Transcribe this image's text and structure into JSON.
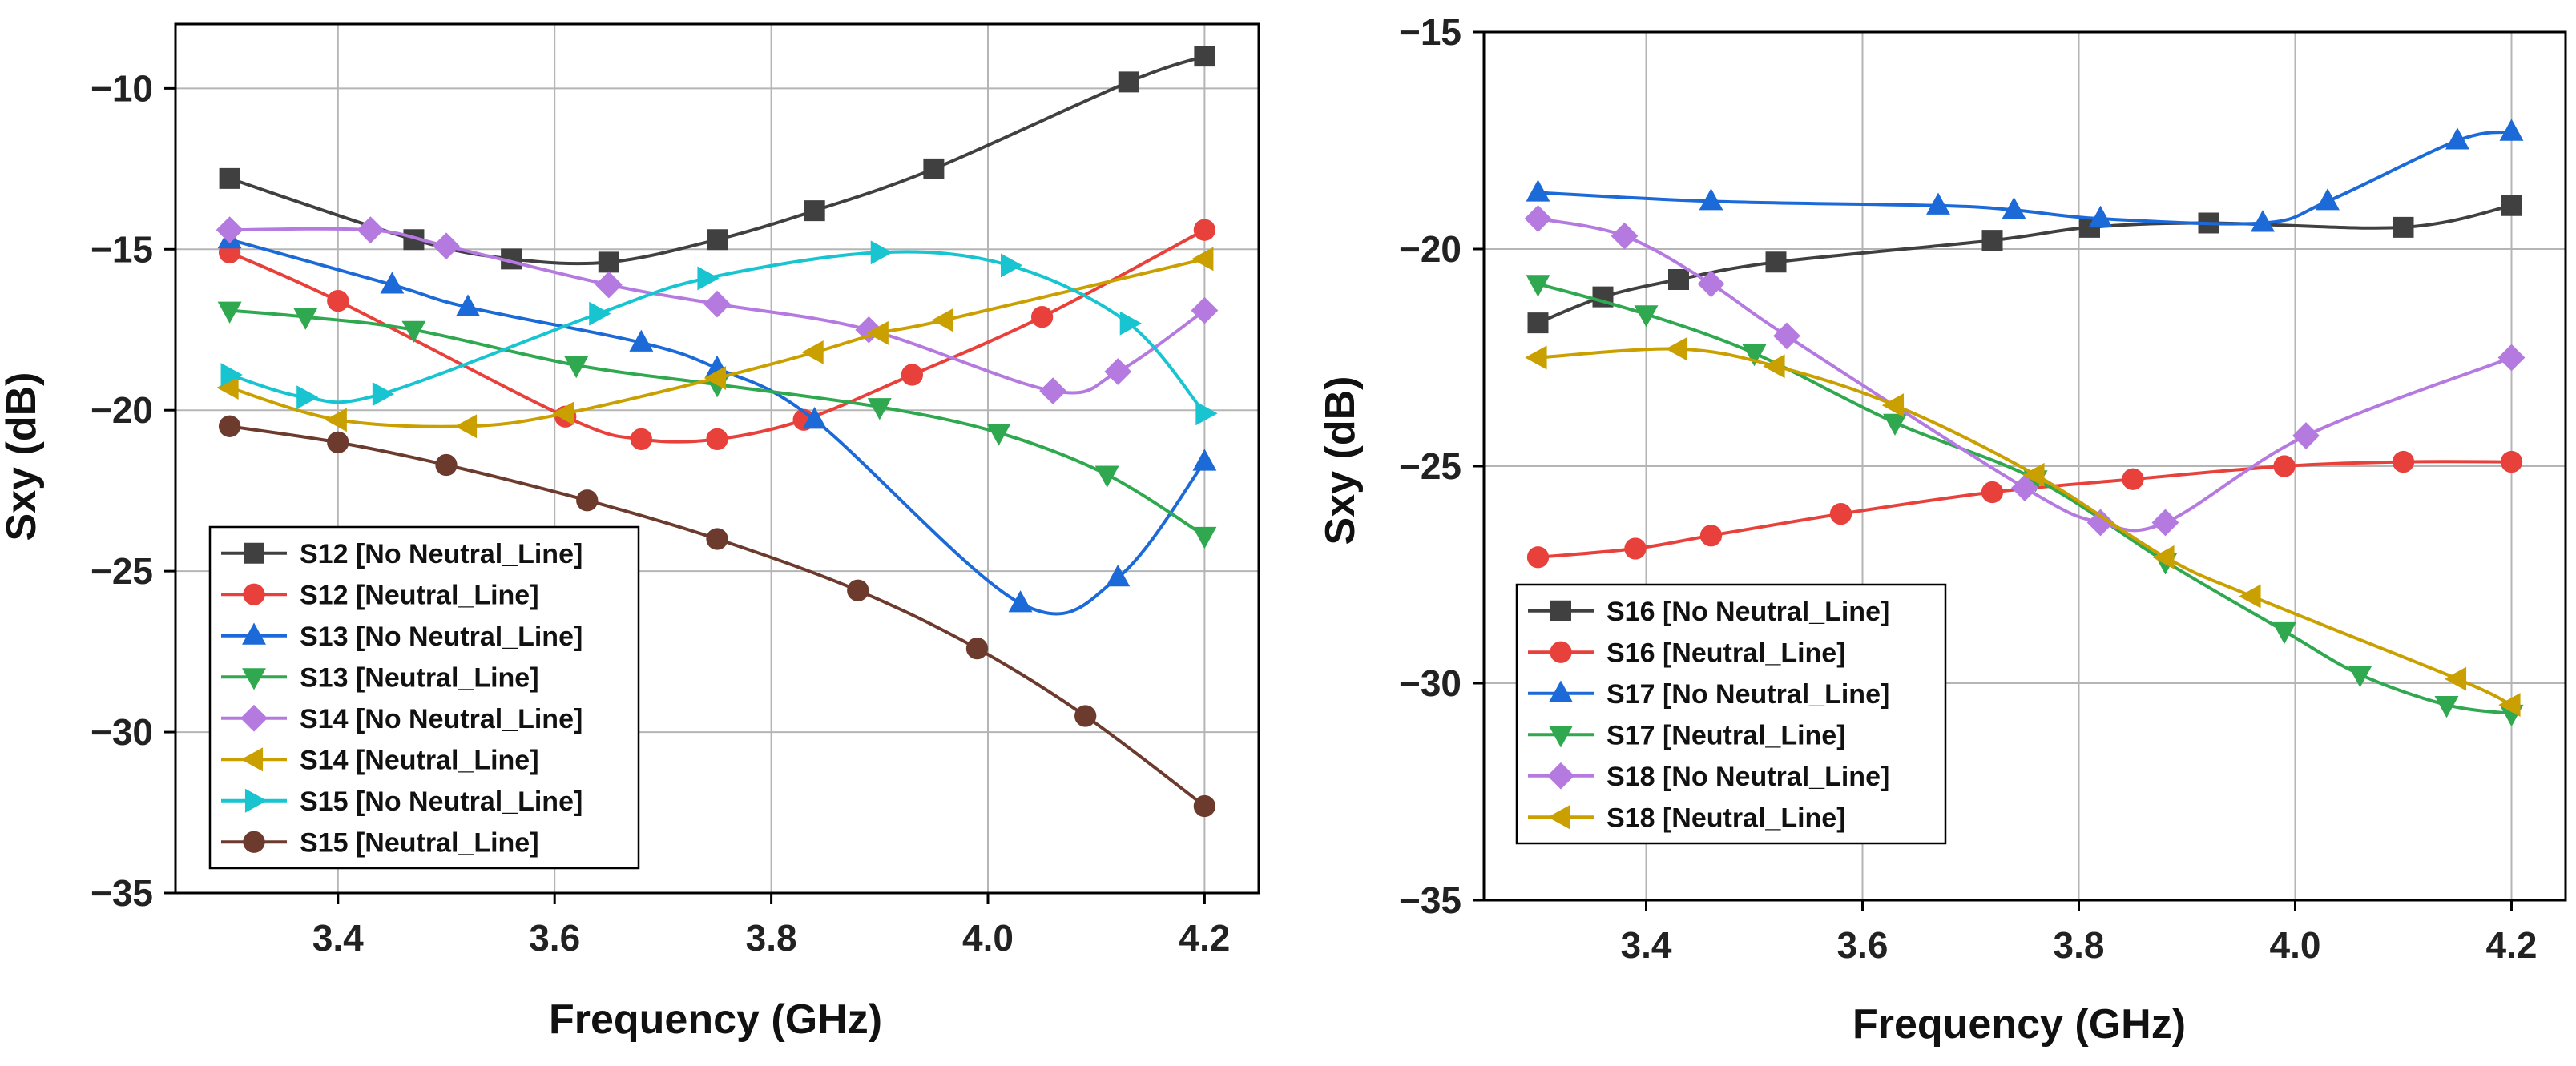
{
  "chart_data": [
    {
      "type": "line",
      "xlabel": "Frequency (GHz)",
      "ylabel": "Sxy (dB)",
      "xlim": [
        3.25,
        4.25
      ],
      "ylim": [
        -35,
        -8
      ],
      "xticks": [
        3.4,
        3.6,
        3.8,
        4.0,
        4.2
      ],
      "yticks": [
        -10,
        -15,
        -20,
        -25,
        -30,
        -35
      ],
      "xtick_labels": [
        "3.4",
        "3.6",
        "3.8",
        "4.0",
        "4.2"
      ],
      "ytick_labels": [
        "−10",
        "−15",
        "−20",
        "−25",
        "−30",
        "−35"
      ],
      "grid": true,
      "legend_position": "bottom-left",
      "series": [
        {
          "name": "S12 [No Neutral_Line]",
          "color": "#404040",
          "marker": "square",
          "x": [
            3.3,
            3.47,
            3.56,
            3.65,
            3.75,
            3.84,
            3.95,
            4.13,
            4.2
          ],
          "y": [
            -12.8,
            -14.7,
            -15.3,
            -15.4,
            -14.7,
            -13.8,
            -12.5,
            -9.8,
            -9.0
          ]
        },
        {
          "name": "S12 [Neutral_Line]",
          "color": "#e8413c",
          "marker": "circle",
          "x": [
            3.3,
            3.4,
            3.61,
            3.68,
            3.75,
            3.83,
            3.93,
            4.05,
            4.2
          ],
          "y": [
            -15.1,
            -16.6,
            -20.2,
            -20.9,
            -20.9,
            -20.3,
            -18.9,
            -17.1,
            -14.4
          ]
        },
        {
          "name": "S13 [No Neutral_Line]",
          "color": "#1c6ad8",
          "marker": "triangle-up",
          "x": [
            3.3,
            3.45,
            3.52,
            3.68,
            3.75,
            3.84,
            4.03,
            4.12,
            4.2
          ],
          "y": [
            -14.7,
            -16.1,
            -16.8,
            -17.9,
            -18.7,
            -20.3,
            -26.0,
            -25.2,
            -21.6
          ]
        },
        {
          "name": "S13 [Neutral_Line]",
          "color": "#2fa84f",
          "marker": "triangle-down",
          "x": [
            3.3,
            3.37,
            3.47,
            3.62,
            3.75,
            3.9,
            4.01,
            4.11,
            4.2
          ],
          "y": [
            -16.9,
            -17.1,
            -17.5,
            -18.6,
            -19.2,
            -19.9,
            -20.7,
            -22.0,
            -23.9
          ]
        },
        {
          "name": "S14 [No Neutral_Line]",
          "color": "#b57ae0",
          "marker": "diamond",
          "x": [
            3.3,
            3.43,
            3.5,
            3.65,
            3.75,
            3.89,
            4.06,
            4.12,
            4.2
          ],
          "y": [
            -14.4,
            -14.4,
            -14.9,
            -16.1,
            -16.7,
            -17.5,
            -19.4,
            -18.8,
            -16.9
          ]
        },
        {
          "name": "S14 [Neutral_Line]",
          "color": "#c9a000",
          "marker": "triangle-left",
          "x": [
            3.3,
            3.4,
            3.52,
            3.61,
            3.75,
            3.84,
            3.9,
            3.96,
            4.2
          ],
          "y": [
            -19.3,
            -20.3,
            -20.5,
            -20.1,
            -19.0,
            -18.2,
            -17.6,
            -17.2,
            -15.3
          ]
        },
        {
          "name": "S15 [No Neutral_Line]",
          "color": "#17c4d0",
          "marker": "triangle-right",
          "x": [
            3.3,
            3.37,
            3.44,
            3.64,
            3.74,
            3.9,
            4.02,
            4.13,
            4.2
          ],
          "y": [
            -18.9,
            -19.6,
            -19.5,
            -17.0,
            -15.9,
            -15.1,
            -15.5,
            -17.3,
            -20.1
          ]
        },
        {
          "name": "S15 [Neutral_Line]",
          "color": "#6d3b2e",
          "marker": "circle",
          "x": [
            3.3,
            3.4,
            3.5,
            3.63,
            3.75,
            3.88,
            3.99,
            4.09,
            4.2
          ],
          "y": [
            -20.5,
            -21.0,
            -21.7,
            -22.8,
            -24.0,
            -25.6,
            -27.4,
            -29.5,
            -32.3
          ]
        }
      ]
    },
    {
      "type": "line",
      "xlabel": "Frequency (GHz)",
      "ylabel": "Sxy (dB)",
      "xlim": [
        3.25,
        4.25
      ],
      "ylim": [
        -35,
        -15
      ],
      "xticks": [
        3.4,
        3.6,
        3.8,
        4.0,
        4.2
      ],
      "yticks": [
        -15,
        -20,
        -25,
        -30,
        -35
      ],
      "xtick_labels": [
        "3.4",
        "3.6",
        "3.8",
        "4.0",
        "4.2"
      ],
      "ytick_labels": [
        "−15",
        "−20",
        "−25",
        "−30",
        "−35"
      ],
      "grid": true,
      "legend_position": "bottom-left",
      "series": [
        {
          "name": "S16 [No Neutral_Line]",
          "color": "#404040",
          "marker": "square",
          "x": [
            3.3,
            3.36,
            3.43,
            3.52,
            3.72,
            3.81,
            3.92,
            4.1,
            4.2
          ],
          "y": [
            -21.7,
            -21.1,
            -20.7,
            -20.3,
            -19.8,
            -19.5,
            -19.4,
            -19.5,
            -19.0
          ]
        },
        {
          "name": "S16 [Neutral_Line]",
          "color": "#e8413c",
          "marker": "circle",
          "x": [
            3.3,
            3.39,
            3.46,
            3.58,
            3.72,
            3.85,
            3.99,
            4.1,
            4.2
          ],
          "y": [
            -27.1,
            -26.9,
            -26.6,
            -26.1,
            -25.6,
            -25.3,
            -25.0,
            -24.9,
            -24.9
          ]
        },
        {
          "name": "S17 [No Neutral_Line]",
          "color": "#1c6ad8",
          "marker": "triangle-up",
          "x": [
            3.3,
            3.46,
            3.67,
            3.74,
            3.82,
            3.97,
            4.03,
            4.15,
            4.2
          ],
          "y": [
            -18.7,
            -18.9,
            -19.0,
            -19.1,
            -19.3,
            -19.4,
            -18.9,
            -17.5,
            -17.3
          ]
        },
        {
          "name": "S17 [Neutral_Line]",
          "color": "#2fa84f",
          "marker": "triangle-down",
          "x": [
            3.3,
            3.4,
            3.5,
            3.63,
            3.76,
            3.88,
            3.99,
            4.06,
            4.14,
            4.2
          ],
          "y": [
            -20.8,
            -21.5,
            -22.4,
            -24.0,
            -25.3,
            -27.2,
            -28.8,
            -29.8,
            -30.5,
            -30.7
          ]
        },
        {
          "name": "S18 [No Neutral_Line]",
          "color": "#b57ae0",
          "marker": "diamond",
          "x": [
            3.3,
            3.38,
            3.46,
            3.53,
            3.75,
            3.82,
            3.88,
            4.01,
            4.2
          ],
          "y": [
            -19.3,
            -19.7,
            -20.8,
            -22.0,
            -25.5,
            -26.3,
            -26.3,
            -24.3,
            -22.5
          ]
        },
        {
          "name": "S18 [Neutral_Line]",
          "color": "#c9a000",
          "marker": "triangle-left",
          "x": [
            3.3,
            3.43,
            3.52,
            3.63,
            3.76,
            3.88,
            3.96,
            4.15,
            4.2
          ],
          "y": [
            -22.5,
            -22.3,
            -22.7,
            -23.6,
            -25.2,
            -27.1,
            -28.0,
            -29.9,
            -30.5
          ]
        }
      ]
    }
  ]
}
